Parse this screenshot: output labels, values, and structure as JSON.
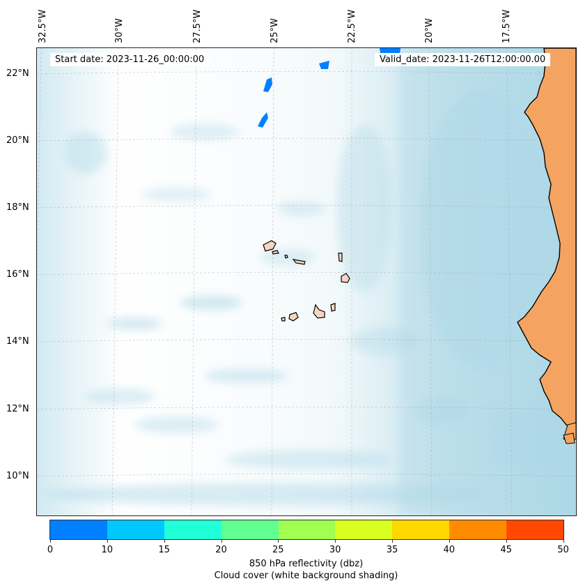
{
  "map": {
    "lon_labels": [
      "32.5°W",
      "30°W",
      "27.5°W",
      "25°W",
      "22.5°W",
      "20°W",
      "17.5°W"
    ],
    "lat_labels": [
      "22°N",
      "20°N",
      "18°N",
      "16°N",
      "14°N",
      "12°N",
      "10°N"
    ],
    "start_date": "Start date: 2023-11-26_00:00:00",
    "valid_date": "Valid_date: 2023-11-26T12:00:00.00",
    "ocean_color": "#add8e6",
    "land_color": "#f4a460",
    "island_color": "#f5d5c0"
  },
  "colorbar": {
    "colors": [
      "#0080ff",
      "#00c8ff",
      "#20ffd8",
      "#60ff90",
      "#a0ff50",
      "#d8ff20",
      "#ffd800",
      "#ff8c00",
      "#ff4800"
    ],
    "ticks": [
      "0",
      "10",
      "15",
      "20",
      "25",
      "30",
      "35",
      "40",
      "45",
      "50"
    ],
    "label": "850 hPa reflectivity (dbz)",
    "sublabel": "Cloud cover (white background shading)"
  }
}
